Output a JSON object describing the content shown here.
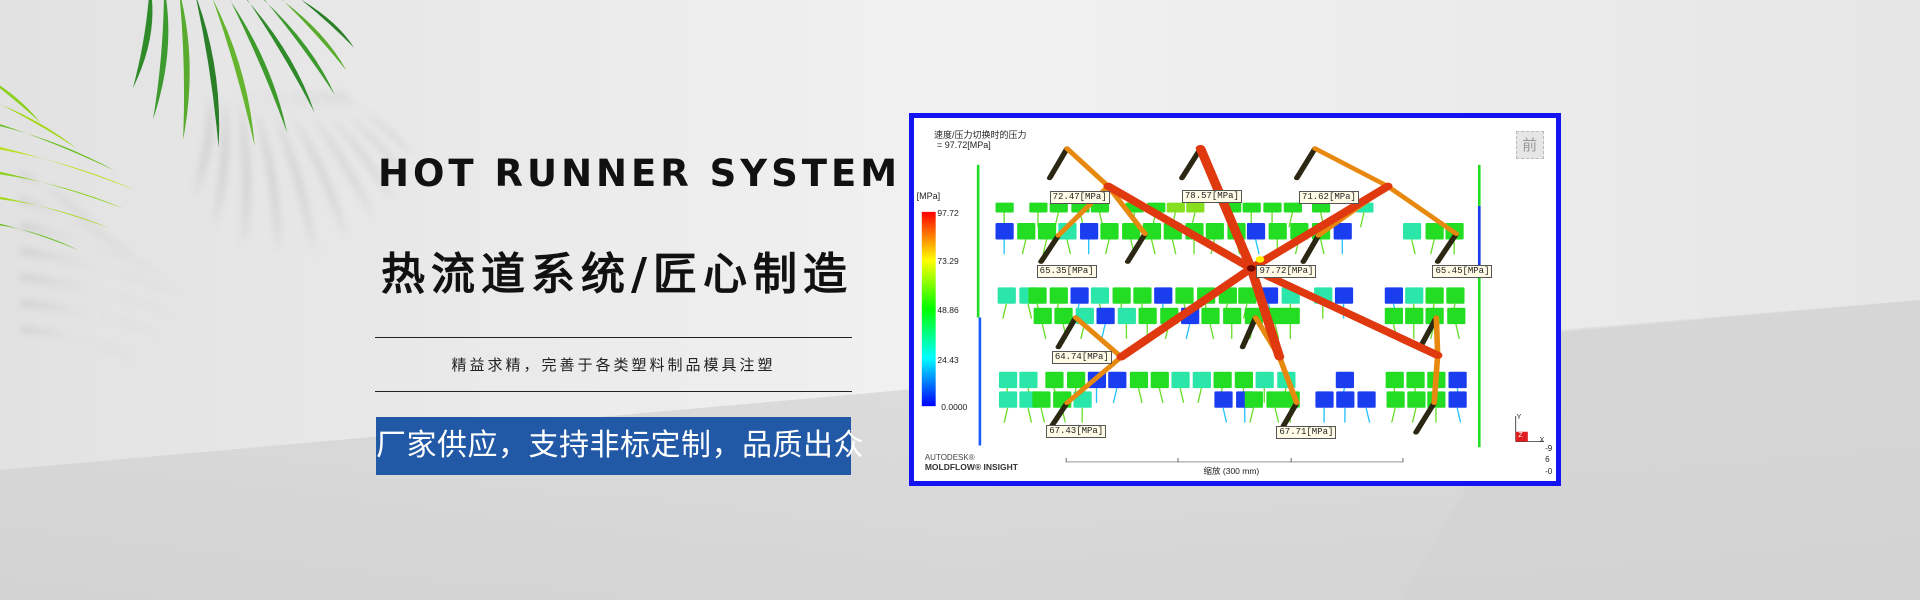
{
  "banner": {
    "title_en": "HOT RUNNER SYSTEM",
    "title_cn": "热流道系统/匠心制造",
    "subtitle": "精益求精，完善于各类塑料制品模具注塑",
    "badge": "厂家供应，支持非标定制，品质出众",
    "badge_color": "#2159a6"
  },
  "simulation": {
    "result_title": "速度/压力切换时的压力",
    "result_value": "= 97.72[MPa]",
    "front_view_label": "前",
    "legend": {
      "unit": "[MPa]",
      "ticks": [
        "97.72",
        "73.29",
        "48.86",
        "24.43",
        "0.0000"
      ],
      "colors": [
        "#ff0000",
        "#ffff00",
        "#00ff00",
        "#00ffff",
        "#0000ff"
      ]
    },
    "probes": [
      "72.47[MPa]",
      "78.57[MPa]",
      "71.62[MPa]",
      "65.35[MPa]",
      "97.72[MPa]",
      "65.45[MPa]",
      "64.74[MPa]",
      "67.43[MPa]",
      "67.71[MPa]"
    ],
    "brand_line1": "AUTODESK®",
    "brand_line2": "MOLDFLOW® INSIGHT",
    "scale_label": "缩放 (300 mm)",
    "axes": {
      "y": "Y",
      "z": "Z",
      "x": "X"
    },
    "rotation": [
      "-9",
      "6",
      "-0"
    ],
    "border_color": "#1414f2"
  }
}
